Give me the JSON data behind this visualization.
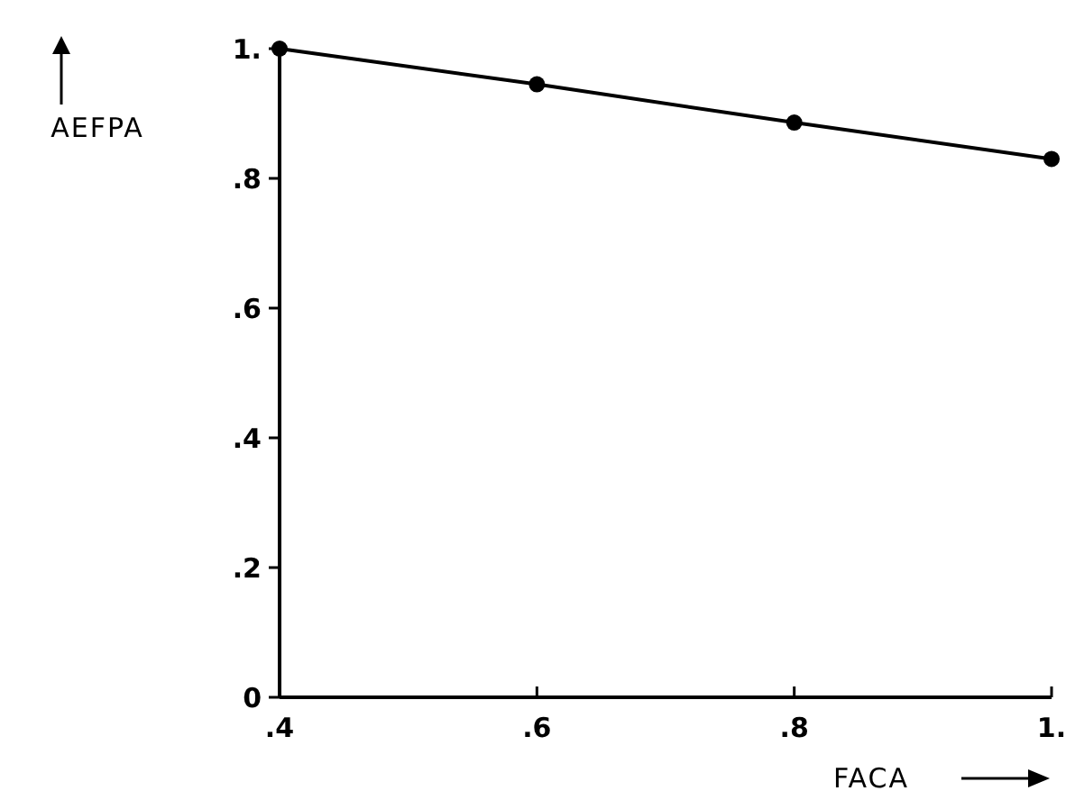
{
  "chart_data": {
    "type": "line",
    "xlabel": "FACA",
    "ylabel": "AEFPA",
    "x": [
      0.4,
      0.6,
      0.8,
      1.0
    ],
    "series": [
      {
        "color": "#000000",
        "values": [
          1.0,
          0.945,
          0.886,
          0.83
        ]
      }
    ],
    "xlim": [
      0.4,
      1.0
    ],
    "xticks": [
      {
        "value": 0.4,
        "label": ".4"
      },
      {
        "value": 0.6,
        "label": ".6"
      },
      {
        "value": 0.8,
        "label": ".8"
      },
      {
        "value": 1.0,
        "label": "1."
      }
    ],
    "ylim": [
      0,
      1.0
    ],
    "yticks": [
      0,
      {
        "value": 0.2,
        "label": ".2"
      },
      {
        "value": 0.4,
        "label": ".4"
      },
      {
        "value": 0.6,
        "label": ".6"
      },
      {
        "value": 0.8,
        "label": ".8"
      },
      {
        "value": 1.0,
        "label": "1."
      }
    ],
    "grid": false,
    "marker": "circle",
    "line_style": "solid"
  }
}
